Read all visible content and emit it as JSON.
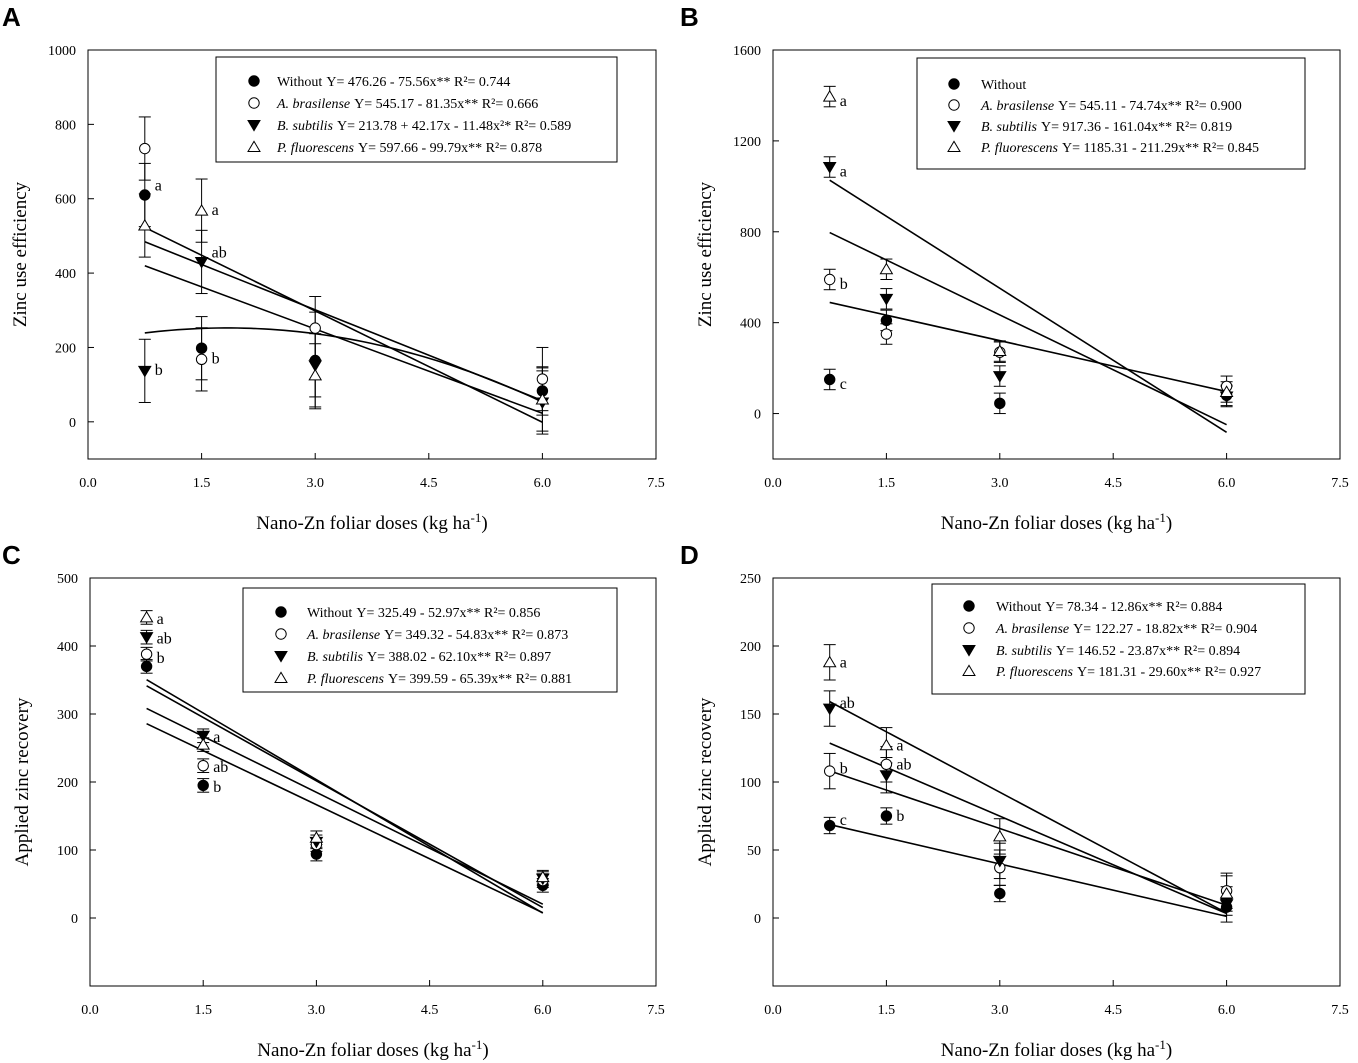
{
  "chart_data": [
    {
      "type": "scatter",
      "panel": "A",
      "ylabel": "Zinc use efficiency",
      "xlabel": "Nano-Zn foliar doses (kg ha",
      "xlabel_sup": "-1",
      "xlabel_end": ")",
      "xlim": [
        0,
        7.5
      ],
      "ylim": [
        -100,
        1000
      ],
      "xticks": [
        "0.0",
        "1.5",
        "3.0",
        "4.5",
        "6.0",
        "7.5"
      ],
      "xtick_values": [
        0,
        1.5,
        3,
        4.5,
        6,
        7.5
      ],
      "yticks": [
        "0",
        "200",
        "400",
        "600",
        "800",
        "1000"
      ],
      "ytick_values": [
        0,
        200,
        400,
        600,
        800,
        1000
      ],
      "series": [
        {
          "name": "Without",
          "italic": false,
          "equation": "Y= 476.26 - 75.56x** R²= 0.744",
          "marker": "filled-circle",
          "x": [
            0.75,
            1.5,
            3,
            6
          ],
          "y": [
            610,
            198,
            165,
            83
          ],
          "err": [
            85,
            85,
            130,
            65
          ],
          "fit": {
            "type": "linear",
            "a": 476.26,
            "b": -75.56
          }
        },
        {
          "name": "A. brasilense",
          "italic": true,
          "equation": "Y= 545.17 - 81.35x** R²= 0.666",
          "marker": "open-circle",
          "x": [
            0.75,
            1.5,
            3,
            6
          ],
          "y": [
            735,
            168,
            252,
            115
          ],
          "err": [
            85,
            85,
            85,
            85
          ],
          "fit": {
            "type": "linear",
            "a": 545.17,
            "b": -81.35
          }
        },
        {
          "name": "B. subtilis",
          "italic": true,
          "equation": "Y= 213.78 + 42.17x - 11.48x²* R²= 0.589",
          "marker": "filled-triangle-down",
          "x": [
            0.75,
            1.5,
            3,
            6
          ],
          "y": [
            137,
            430,
            152,
            52
          ],
          "err": [
            85,
            85,
            85,
            85
          ],
          "fit": {
            "type": "quadratic",
            "a": 213.78,
            "b": 42.17,
            "c": -11.48
          }
        },
        {
          "name": "P. fluorescens",
          "italic": true,
          "equation": "Y= 597.66 - 99.79x** R²= 0.878",
          "marker": "open-triangle-up",
          "x": [
            0.75,
            1.5,
            3,
            6
          ],
          "y": [
            528,
            568,
            125,
            60
          ],
          "err": [
            85,
            85,
            85,
            85
          ],
          "fit": {
            "type": "linear",
            "a": 597.66,
            "b": -99.79
          }
        }
      ],
      "annotations": [
        {
          "text": "a",
          "x": 0.75,
          "y": 635
        },
        {
          "text": "a",
          "x": 1.5,
          "y": 570
        },
        {
          "text": "ab",
          "x": 1.5,
          "y": 455
        },
        {
          "text": "b",
          "x": 1.5,
          "y": 170
        },
        {
          "text": "b",
          "x": 0.75,
          "y": 140
        }
      ]
    },
    {
      "type": "scatter",
      "panel": "B",
      "ylabel": "Zinc use efficiency",
      "xlabel": "Nano-Zn foliar doses (kg ha",
      "xlabel_sup": "-1",
      "xlabel_end": ")",
      "xlim": [
        0,
        7.5
      ],
      "ylim": [
        -200,
        1600
      ],
      "xticks": [
        "0.0",
        "1.5",
        "3.0",
        "4.5",
        "6.0",
        "7.5"
      ],
      "xtick_values": [
        0,
        1.5,
        3,
        4.5,
        6,
        7.5
      ],
      "yticks": [
        "0",
        "400",
        "800",
        "1200",
        "1600"
      ],
      "ytick_values": [
        0,
        400,
        800,
        1200,
        1600
      ],
      "series": [
        {
          "name": "Without",
          "italic": false,
          "equation": "",
          "marker": "filled-circle",
          "x": [
            0.75,
            1.5,
            3,
            6
          ],
          "y": [
            150,
            410,
            45,
            80
          ],
          "err": [
            45,
            45,
            45,
            45
          ],
          "fit": null
        },
        {
          "name": "A. brasilense",
          "italic": true,
          "equation": "Y= 545.11 - 74.74x** R²= 0.900",
          "marker": "open-circle",
          "x": [
            0.75,
            1.5,
            3,
            6
          ],
          "y": [
            590,
            350,
            270,
            120
          ],
          "err": [
            45,
            45,
            45,
            45
          ],
          "fit": {
            "type": "linear",
            "a": 545.11,
            "b": -74.74
          }
        },
        {
          "name": "B. subtilis",
          "italic": true,
          "equation": "Y= 917.36 - 161.04x** R²= 0.819",
          "marker": "filled-triangle-down",
          "x": [
            0.75,
            1.5,
            3,
            6
          ],
          "y": [
            1085,
            505,
            165,
            75
          ],
          "err": [
            45,
            45,
            45,
            45
          ],
          "fit": {
            "type": "linear",
            "a": 917.36,
            "b": -161.04
          }
        },
        {
          "name": "P. fluorescens",
          "italic": true,
          "equation": "Y= 1185.31 - 211.29x** R²= 0.845",
          "marker": "open-triangle-up",
          "x": [
            0.75,
            1.5,
            3,
            6
          ],
          "y": [
            1395,
            635,
            275,
            95
          ],
          "err": [
            45,
            45,
            45,
            45
          ],
          "fit": {
            "type": "linear",
            "a": 1185.31,
            "b": -211.29
          }
        }
      ],
      "annotations": [
        {
          "text": "a",
          "x": 0.75,
          "y": 1375
        },
        {
          "text": "a",
          "x": 0.75,
          "y": 1065
        },
        {
          "text": "b",
          "x": 0.75,
          "y": 570
        },
        {
          "text": "c",
          "x": 0.75,
          "y": 130
        }
      ]
    },
    {
      "type": "scatter",
      "panel": "C",
      "ylabel": "Applied zinc recovery",
      "xlabel": "Nano-Zn foliar doses (kg ha",
      "xlabel_sup": "-1",
      "xlabel_end": ")",
      "xlim": [
        0,
        7.5
      ],
      "ylim": [
        -100,
        500
      ],
      "xticks": [
        "0.0",
        "1.5",
        "3.0",
        "4.5",
        "6.0",
        "7.5"
      ],
      "xtick_values": [
        0,
        1.5,
        3,
        4.5,
        6,
        7.5
      ],
      "yticks": [
        "0",
        "100",
        "200",
        "300",
        "400",
        "500"
      ],
      "ytick_values": [
        0,
        100,
        200,
        300,
        400,
        500
      ],
      "series": [
        {
          "name": "Without",
          "italic": false,
          "equation": "Y= 325.49 - 52.97x** R²= 0.856",
          "marker": "filled-circle",
          "x": [
            0.75,
            1.5,
            3,
            6
          ],
          "y": [
            370,
            195,
            94,
            48
          ],
          "err": [
            10,
            10,
            10,
            10
          ],
          "fit": {
            "type": "linear",
            "a": 325.49,
            "b": -52.97
          }
        },
        {
          "name": "A. brasilense",
          "italic": true,
          "equation": "Y= 349.32 - 54.83x** R²= 0.873",
          "marker": "open-circle",
          "x": [
            0.75,
            1.5,
            3,
            6
          ],
          "y": [
            388,
            224,
            108,
            55
          ],
          "err": [
            10,
            10,
            10,
            10
          ],
          "fit": {
            "type": "linear",
            "a": 349.32,
            "b": -54.83
          }
        },
        {
          "name": "B. subtilis",
          "italic": true,
          "equation": "Y= 388.02 - 62.10x** R²= 0.897",
          "marker": "filled-triangle-down",
          "x": [
            0.75,
            1.5,
            3,
            6
          ],
          "y": [
            413,
            268,
            112,
            58
          ],
          "err": [
            10,
            10,
            10,
            10
          ],
          "fit": {
            "type": "linear",
            "a": 388.02,
            "b": -62.1
          }
        },
        {
          "name": "P. fluorescens",
          "italic": true,
          "equation": "Y= 399.59 - 65.39x** R²= 0.881",
          "marker": "open-triangle-up",
          "x": [
            0.75,
            1.5,
            3,
            6
          ],
          "y": [
            442,
            255,
            118,
            60
          ],
          "err": [
            10,
            10,
            10,
            10
          ],
          "fit": {
            "type": "linear",
            "a": 399.59,
            "b": -65.39
          }
        }
      ],
      "annotations": [
        {
          "text": "a",
          "x": 0.75,
          "y": 440
        },
        {
          "text": "ab",
          "x": 0.75,
          "y": 411
        },
        {
          "text": "b",
          "x": 0.75,
          "y": 382
        },
        {
          "text": "a",
          "x": 1.5,
          "y": 266
        },
        {
          "text": "ab",
          "x": 1.5,
          "y": 222
        },
        {
          "text": "b",
          "x": 1.5,
          "y": 193
        }
      ]
    },
    {
      "type": "scatter",
      "panel": "D",
      "ylabel": "Applied zinc recovery",
      "xlabel": "Nano-Zn foliar doses (kg ha",
      "xlabel_sup": "-1",
      "xlabel_end": ")",
      "xlim": [
        0,
        7.5
      ],
      "ylim": [
        -50,
        250
      ],
      "xticks": [
        "0.0",
        "1.5",
        "3.0",
        "4.5",
        "6.0",
        "7.5"
      ],
      "xtick_values": [
        0,
        1.5,
        3,
        4.5,
        6,
        7.5
      ],
      "yticks": [
        "0",
        "50",
        "100",
        "150",
        "200",
        "250"
      ],
      "ytick_values": [
        0,
        50,
        100,
        150,
        200,
        250
      ],
      "series": [
        {
          "name": "Without",
          "italic": false,
          "equation": "Y= 78.34 - 12.86x** R²= 0.884",
          "marker": "filled-circle",
          "x": [
            0.75,
            1.5,
            3,
            6
          ],
          "y": [
            68,
            75,
            18,
            8
          ],
          "err": [
            6,
            6,
            6,
            6
          ],
          "fit": {
            "type": "linear",
            "a": 78.34,
            "b": -12.86
          }
        },
        {
          "name": "A. brasilense",
          "italic": true,
          "equation": "Y= 122.27 - 18.82x** R²= 0.904",
          "marker": "open-circle",
          "x": [
            0.75,
            1.5,
            3,
            6
          ],
          "y": [
            108,
            113,
            37,
            20
          ],
          "err": [
            13,
            13,
            13,
            13
          ],
          "fit": {
            "type": "linear",
            "a": 122.27,
            "b": -18.82
          }
        },
        {
          "name": "B. subtilis",
          "italic": true,
          "equation": "Y= 146.52 - 23.87x** R²= 0.894",
          "marker": "filled-triangle-down",
          "x": [
            0.75,
            1.5,
            3,
            6
          ],
          "y": [
            154,
            105,
            42,
            10
          ],
          "err": [
            13,
            13,
            13,
            13
          ],
          "fit": {
            "type": "linear",
            "a": 146.52,
            "b": -23.87
          }
        },
        {
          "name": "P. fluorescens",
          "italic": true,
          "equation": "Y= 181.31 - 29.60x** R²= 0.927",
          "marker": "open-triangle-up",
          "x": [
            0.75,
            1.5,
            3,
            6
          ],
          "y": [
            188,
            127,
            60,
            18
          ],
          "err": [
            13,
            13,
            13,
            13
          ],
          "fit": {
            "type": "linear",
            "a": 181.31,
            "b": -29.6
          }
        }
      ],
      "annotations": [
        {
          "text": "a",
          "x": 0.75,
          "y": 188
        },
        {
          "text": "ab",
          "x": 0.75,
          "y": 158
        },
        {
          "text": "b",
          "x": 0.75,
          "y": 110
        },
        {
          "text": "c",
          "x": 0.75,
          "y": 72
        },
        {
          "text": "a",
          "x": 1.5,
          "y": 127
        },
        {
          "text": "ab",
          "x": 1.5,
          "y": 113
        },
        {
          "text": "b",
          "x": 1.5,
          "y": 75
        }
      ]
    }
  ]
}
